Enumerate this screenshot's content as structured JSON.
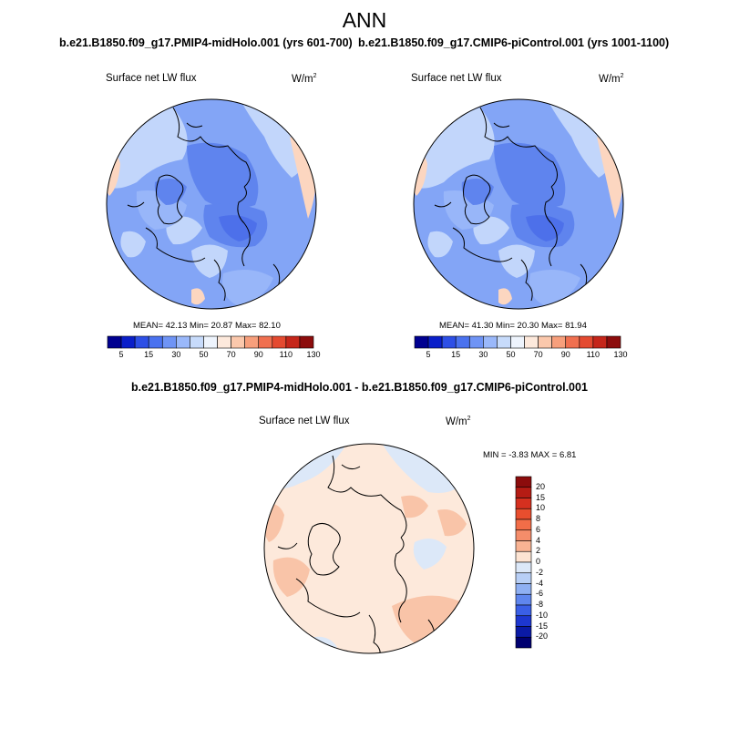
{
  "figure": {
    "title": "ANN"
  },
  "panels": [
    {
      "title": "b.e21.B1850.f09_g17.PMIP4-midHolo.001 (yrs 601-700)",
      "variable": "Surface net LW flux",
      "units": "W/m",
      "units_exp": "2",
      "stats": "MEAN=  42.13  Min=  20.87  Max=  82.10",
      "mean": 42.13,
      "min": 20.87,
      "max": 82.1
    },
    {
      "title": "b.e21.B1850.f09_g17.CMIP6-piControl.001 (yrs 1001-1100)",
      "variable": "Surface net LW flux",
      "units": "W/m",
      "units_exp": "2",
      "stats": "MEAN=  41.30  Min=  20.30  Max=  81.94",
      "mean": 41.3,
      "min": 20.3,
      "max": 81.94
    },
    {
      "title": "b.e21.B1850.f09_g17.PMIP4-midHolo.001 - b.e21.B1850.f09_g17.CMIP6-piControl.001",
      "variable": "Surface net LW flux",
      "units": "W/m",
      "units_exp": "2",
      "stats": "MIN =  -3.83 MAX =   6.81",
      "min": -3.83,
      "max": 6.81
    }
  ],
  "colorbar_horizontal": {
    "tick_labels": [
      "5",
      "15",
      "30",
      "50",
      "70",
      "90",
      "110",
      "130"
    ],
    "colors": [
      "#000090",
      "#0a1fc9",
      "#2d4fe6",
      "#4a72ef",
      "#6f94f5",
      "#9ab8fa",
      "#c7dbfb",
      "#eef4fd",
      "#fde9dc",
      "#fbc8ac",
      "#f79f7c",
      "#f07050",
      "#e44a30",
      "#c5261a",
      "#8c0c0c"
    ]
  },
  "colorbar_vertical": {
    "tick_labels": [
      "20",
      "15",
      "10",
      "8",
      "6",
      "4",
      "2",
      "0",
      "-2",
      "-4",
      "-6",
      "-8",
      "-10",
      "-15",
      "-20"
    ],
    "colors": [
      "#8c0c0c",
      "#b51c14",
      "#d5301f",
      "#e84e2e",
      "#f26d48",
      "#f58d6a",
      "#f9b393",
      "#fde4d3",
      "#dce8f8",
      "#b8cff6",
      "#8fb0f3",
      "#5f86ee",
      "#3a5fe6",
      "#1d37d0",
      "#0a1aa6",
      "#000070"
    ]
  },
  "map_colors": {
    "blue_light": "#c2d6fb",
    "blue_mid": "#98b6f9",
    "blue_base": "#83a5f6",
    "blue_deep": "#5f84ee",
    "blue_darkest": "#4d70ea",
    "peach": "#fcd6c0",
    "peach_dark": "#f7b59a",
    "diff_base": "#fde9db",
    "diff_blue": "#dce8f8",
    "diff_warm": "#f9c4a8"
  }
}
